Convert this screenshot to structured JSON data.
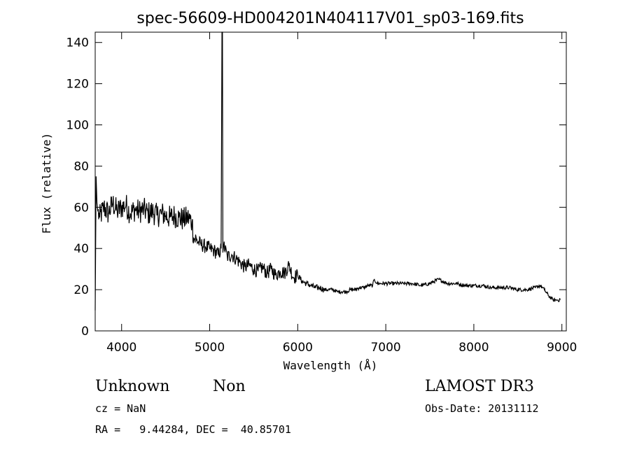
{
  "chart_data": {
    "type": "line",
    "title": "spec-56609-HD004201N404117V01_sp03-169.fits",
    "xlabel": "Wavelength (Å)",
    "ylabel": "Flux (relative)",
    "xlim": [
      3700,
      9050
    ],
    "ylim": [
      0,
      145
    ],
    "x_ticks": [
      4000,
      5000,
      6000,
      7000,
      8000,
      9000
    ],
    "y_ticks": [
      0,
      20,
      40,
      60,
      80,
      100,
      120,
      140
    ],
    "grid": false,
    "series": [
      {
        "x": [
          3700,
          3710,
          3720,
          3730,
          3750,
          3800,
          3850,
          3900,
          3950,
          4000,
          4050,
          4100,
          4150,
          4200,
          4250,
          4300,
          4350,
          4400,
          4450,
          4500,
          4550,
          4600,
          4650,
          4700,
          4750,
          4800,
          4820,
          4850,
          4900,
          4950,
          5000,
          5050,
          5100,
          5130,
          5140,
          5145,
          5150,
          5160,
          5200,
          5250,
          5300,
          5350,
          5400,
          5450,
          5500,
          5550,
          5600,
          5650,
          5700,
          5750,
          5800,
          5850,
          5900,
          5950,
          6000,
          6050,
          6100,
          6150,
          6200,
          6250,
          6300,
          6350,
          6400,
          6450,
          6500,
          6550,
          6600,
          6650,
          6700,
          6750,
          6800,
          6850,
          6870,
          6900,
          6950,
          7000,
          7100,
          7200,
          7300,
          7400,
          7500,
          7600,
          7700,
          7800,
          7900,
          8000,
          8100,
          8200,
          8300,
          8400,
          8500,
          8600,
          8700,
          8750,
          8780,
          8800,
          8850,
          8900,
          8950,
          8980
        ],
        "values": [
          10,
          75,
          62,
          58,
          55,
          60,
          57,
          62,
          58,
          60,
          61,
          57,
          59,
          58,
          59,
          57,
          58,
          56,
          57,
          56,
          55,
          56,
          55,
          54,
          55,
          53,
          45,
          44,
          42,
          41,
          40,
          39,
          37,
          40,
          145,
          145,
          38,
          42,
          36,
          37,
          35,
          33,
          31,
          32,
          30,
          29,
          31,
          28,
          30,
          27,
          29,
          28,
          32,
          26,
          27,
          24,
          23,
          22,
          21,
          21,
          20,
          20,
          20,
          19,
          19,
          19,
          20,
          20,
          21,
          21,
          22,
          22,
          25,
          23,
          23,
          23,
          23,
          23,
          23,
          22,
          23,
          25,
          23,
          23,
          22,
          22,
          22,
          21,
          21,
          21,
          20,
          20,
          21,
          22,
          21,
          20,
          17,
          15,
          15,
          15
        ]
      }
    ]
  },
  "annotations": {
    "object_class": "Unknown",
    "object_subclass": "Non",
    "survey": "LAMOST DR3",
    "cz": "cz = NaN",
    "obs_date": "Obs-Date: 20131112",
    "coords": "RA =   9.44284, DEC =  40.85701"
  }
}
